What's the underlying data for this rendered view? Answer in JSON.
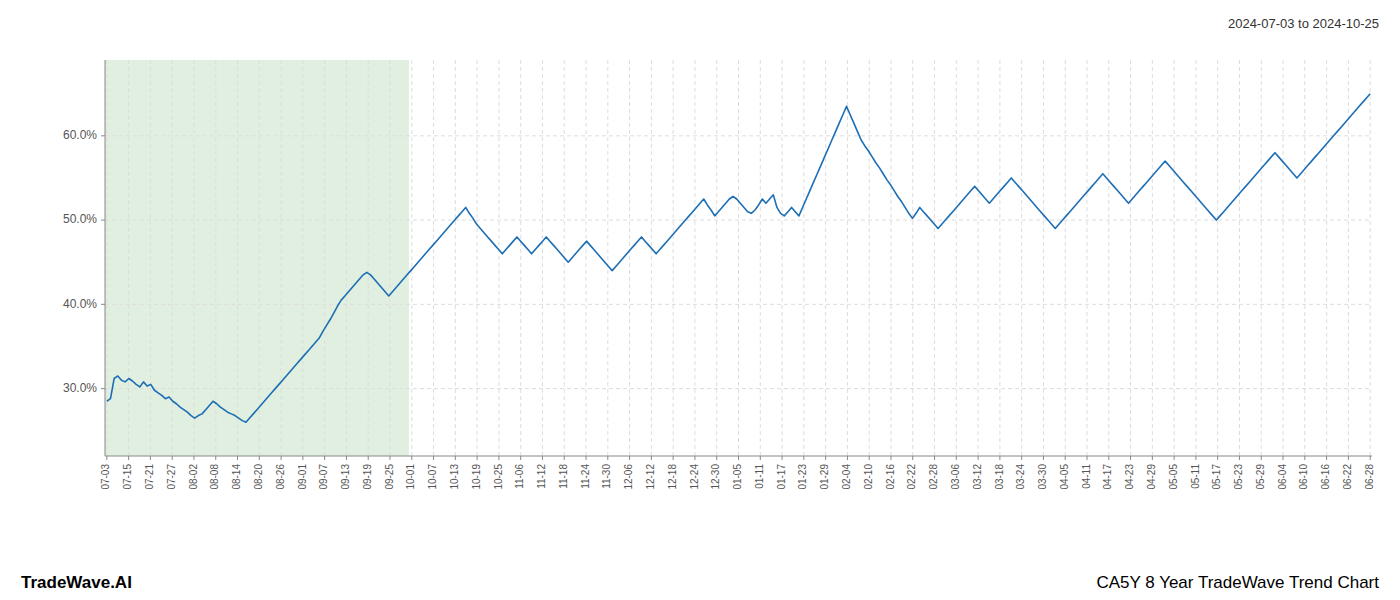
{
  "chart_data": {
    "type": "line",
    "title": "CA5Y 8 Year TradeWave Trend Chart",
    "subtitle": "2024-07-03 to 2024-10-25",
    "annotations": [
      "TradeWave.AI"
    ],
    "color": "#1c6eb5",
    "grid": true,
    "highlight": {
      "from": 0,
      "to": 82,
      "color": "#e0efe0"
    },
    "ylim": [
      22,
      69
    ],
    "yticks": [
      {
        "value": 30.0,
        "label": "30.0%"
      },
      {
        "value": 40.0,
        "label": "40.0%"
      },
      {
        "value": 50.0,
        "label": "50.0%"
      },
      {
        "value": 60.0,
        "label": "60.0%"
      }
    ],
    "xlim": [
      -0.5,
      345.5
    ],
    "xticks": [
      {
        "value": 0,
        "label": "07-03"
      },
      {
        "value": 5.9483,
        "label": "07-15"
      },
      {
        "value": 11.8966,
        "label": "07-21"
      },
      {
        "value": 17.8448,
        "label": "07-27"
      },
      {
        "value": 23.7931,
        "label": "08-02"
      },
      {
        "value": 29.7414,
        "label": "08-08"
      },
      {
        "value": 35.6897,
        "label": "08-14"
      },
      {
        "value": 41.6379,
        "label": "08-20"
      },
      {
        "value": 47.5862,
        "label": "08-26"
      },
      {
        "value": 53.5345,
        "label": "09-01"
      },
      {
        "value": 59.4828,
        "label": "09-07"
      },
      {
        "value": 65.431,
        "label": "09-13"
      },
      {
        "value": 71.3793,
        "label": "09-19"
      },
      {
        "value": 77.3276,
        "label": "09-25"
      },
      {
        "value": 83.2759,
        "label": "10-01"
      },
      {
        "value": 89.2241,
        "label": "10-07"
      },
      {
        "value": 95.1724,
        "label": "10-13"
      },
      {
        "value": 101.1207,
        "label": "10-19"
      },
      {
        "value": 107.069,
        "label": "10-25"
      },
      {
        "value": 113.0172,
        "label": "11-06"
      },
      {
        "value": 118.9655,
        "label": "11-12"
      },
      {
        "value": 124.9138,
        "label": "11-18"
      },
      {
        "value": 130.8621,
        "label": "11-24"
      },
      {
        "value": 136.8103,
        "label": "11-30"
      },
      {
        "value": 142.7586,
        "label": "12-06"
      },
      {
        "value": 148.7069,
        "label": "12-12"
      },
      {
        "value": 154.6552,
        "label": "12-18"
      },
      {
        "value": 160.6034,
        "label": "12-24"
      },
      {
        "value": 166.5517,
        "label": "12-30"
      },
      {
        "value": 172.5,
        "label": "01-05"
      },
      {
        "value": 178.4483,
        "label": "01-11"
      },
      {
        "value": 184.3966,
        "label": "01-17"
      },
      {
        "value": 190.3448,
        "label": "01-23"
      },
      {
        "value": 196.2931,
        "label": "01-29"
      },
      {
        "value": 202.2414,
        "label": "02-04"
      },
      {
        "value": 208.1897,
        "label": "02-10"
      },
      {
        "value": 214.1379,
        "label": "02-16"
      },
      {
        "value": 220.0862,
        "label": "02-22"
      },
      {
        "value": 226.0345,
        "label": "02-28"
      },
      {
        "value": 231.9828,
        "label": "03-06"
      },
      {
        "value": 237.931,
        "label": "03-12"
      },
      {
        "value": 243.8793,
        "label": "03-18"
      },
      {
        "value": 249.8276,
        "label": "03-24"
      },
      {
        "value": 255.7759,
        "label": "03-30"
      },
      {
        "value": 261.7241,
        "label": "04-05"
      },
      {
        "value": 267.6724,
        "label": "04-11"
      },
      {
        "value": 273.6207,
        "label": "04-17"
      },
      {
        "value": 279.569,
        "label": "04-23"
      },
      {
        "value": 285.5172,
        "label": "04-29"
      },
      {
        "value": 291.4655,
        "label": "05-05"
      },
      {
        "value": 297.4138,
        "label": "05-11"
      },
      {
        "value": 303.3621,
        "label": "05-17"
      },
      {
        "value": 309.3103,
        "label": "05-23"
      },
      {
        "value": 315.2586,
        "label": "05-29"
      },
      {
        "value": 321.2069,
        "label": "06-04"
      },
      {
        "value": 327.1552,
        "label": "06-10"
      },
      {
        "value": 333.1034,
        "label": "06-16"
      },
      {
        "value": 339.0517,
        "label": "06-22"
      },
      {
        "value": 345,
        "label": "06-28"
      }
    ],
    "values": [
      28.5,
      28.8,
      31.2,
      31.5,
      31.0,
      30.8,
      31.2,
      30.9,
      30.5,
      30.2,
      30.8,
      30.3,
      30.5,
      29.8,
      29.5,
      29.2,
      28.8,
      29.0,
      28.5,
      28.2,
      27.8,
      27.5,
      27.2,
      26.8,
      26.5,
      26.8,
      27.0,
      27.5,
      28.0,
      28.5,
      28.2,
      27.8,
      27.5,
      27.2,
      27.0,
      26.8,
      26.5,
      26.2,
      26.0,
      26.5,
      27.0,
      27.5,
      28.0,
      28.5,
      29.0,
      29.5,
      30.0,
      30.5,
      31.0,
      31.5,
      32.0,
      32.5,
      33.0,
      33.5,
      34.0,
      34.5,
      35.0,
      35.5,
      36.0,
      36.8,
      37.5,
      38.2,
      39.0,
      39.8,
      40.5,
      41.0,
      41.5,
      42.0,
      42.5,
      43.0,
      43.5,
      43.8,
      43.5,
      43.0,
      42.5,
      42.0,
      41.5,
      41.0,
      41.5,
      42.0,
      42.5,
      43.0,
      43.5,
      44.0,
      44.5,
      45.0,
      45.5,
      46.0,
      46.5,
      47.0,
      47.5,
      48.0,
      48.5,
      49.0,
      49.5,
      50.0,
      50.5,
      51.0,
      51.5,
      50.8,
      50.2,
      49.5,
      49.0,
      48.5,
      48.0,
      47.5,
      47.0,
      46.5,
      46.0,
      46.5,
      47.0,
      47.5,
      48.0,
      47.5,
      47.0,
      46.5,
      46.0,
      46.5,
      47.0,
      47.5,
      48.0,
      47.5,
      47.0,
      46.5,
      46.0,
      45.5,
      45.0,
      45.5,
      46.0,
      46.5,
      47.0,
      47.5,
      47.0,
      46.5,
      46.0,
      45.5,
      45.0,
      44.5,
      44.0,
      44.5,
      45.0,
      45.5,
      46.0,
      46.5,
      47.0,
      47.5,
      48.0,
      47.5,
      47.0,
      46.5,
      46.0,
      46.5,
      47.0,
      47.5,
      48.0,
      48.5,
      49.0,
      49.5,
      50.0,
      50.5,
      51.0,
      51.5,
      52.0,
      52.5,
      51.8,
      51.2,
      50.5,
      51.0,
      51.5,
      52.0,
      52.5,
      52.8,
      52.5,
      52.0,
      51.5,
      51.0,
      50.8,
      51.2,
      51.8,
      52.5,
      52.0,
      52.5,
      53.0,
      51.5,
      50.8,
      50.5,
      51.0,
      51.5,
      51.0,
      50.5,
      51.5,
      52.5,
      53.5,
      54.5,
      55.5,
      56.5,
      57.5,
      58.5,
      59.5,
      60.5,
      61.5,
      62.5,
      63.5,
      62.5,
      61.5,
      60.5,
      59.5,
      58.8,
      58.2,
      57.5,
      56.8,
      56.2,
      55.5,
      54.8,
      54.2,
      53.5,
      52.8,
      52.2,
      51.5,
      50.8,
      50.2,
      50.8,
      51.5,
      51.0,
      50.5,
      50.0,
      49.5,
      49.0,
      49.5,
      50.0,
      50.5,
      51.0,
      51.5,
      52.0,
      52.5,
      53.0,
      53.5,
      54.0,
      53.5,
      53.0,
      52.5,
      52.0,
      52.5,
      53.0,
      53.5,
      54.0,
      54.5,
      55.0,
      54.5,
      54.0,
      53.5,
      53.0,
      52.5,
      52.0,
      51.5,
      51.0,
      50.5,
      50.0,
      49.5,
      49.0,
      49.5,
      50.0,
      50.5,
      51.0,
      51.5,
      52.0,
      52.5,
      53.0,
      53.5,
      54.0,
      54.5,
      55.0,
      55.5,
      55.0,
      54.5,
      54.0,
      53.5,
      53.0,
      52.5,
      52.0,
      52.5,
      53.0,
      53.5,
      54.0,
      54.5,
      55.0,
      55.5,
      56.0,
      56.5,
      57.0,
      56.5,
      56.0,
      55.5,
      55.0,
      54.5,
      54.0,
      53.5,
      53.0,
      52.5,
      52.0,
      51.5,
      51.0,
      50.5,
      50.0,
      50.5,
      51.0,
      51.5,
      52.0,
      52.5,
      53.0,
      53.5,
      54.0,
      54.5,
      55.0,
      55.5,
      56.0,
      56.5,
      57.0,
      57.5,
      58.0,
      57.5,
      57.0,
      56.5,
      56.0,
      55.5,
      55.0,
      55.5,
      56.0,
      56.5,
      57.0,
      57.5,
      58.0,
      58.5,
      59.0,
      59.5,
      60.0,
      60.5,
      61.0,
      61.5,
      62.0,
      62.5,
      63.0,
      63.5,
      64.0,
      64.5,
      65.0
    ]
  }
}
